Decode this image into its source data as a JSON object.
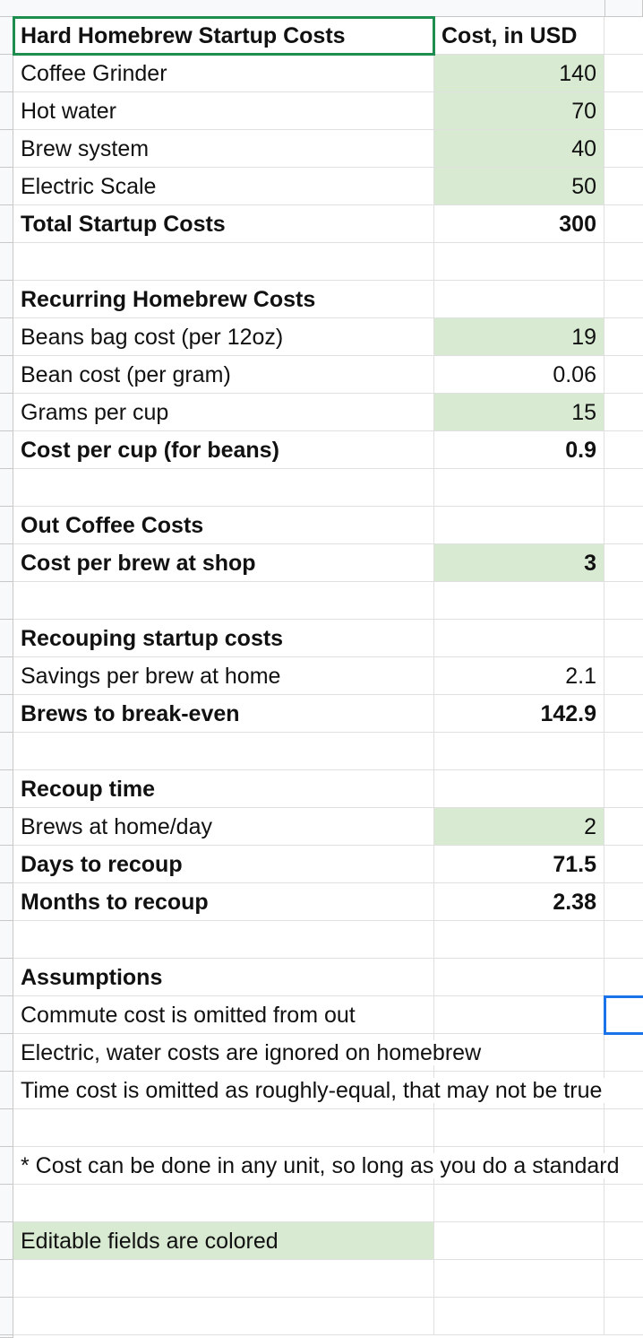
{
  "sheet": {
    "fill_color": "#d9ead3",
    "rows": [
      {
        "cells": [
          "Hard Homebrew Startup Costs",
          "Cost, in USD"
        ],
        "bold": true,
        "selected": 0,
        "value_align": "left"
      },
      {
        "cells": [
          "Coffee Grinder",
          140
        ],
        "green": 1
      },
      {
        "cells": [
          "Hot water",
          70
        ],
        "green": 1
      },
      {
        "cells": [
          "Brew system",
          40
        ],
        "green": 1
      },
      {
        "cells": [
          "Electric Scale",
          50
        ],
        "green": 1
      },
      {
        "cells": [
          "Total Startup Costs",
          300
        ],
        "bold": true
      },
      {
        "cells": []
      },
      {
        "cells": [
          "Recurring Homebrew Costs"
        ],
        "bold": true
      },
      {
        "cells": [
          "Beans bag cost (per 12oz)",
          19
        ],
        "green": 1
      },
      {
        "cells": [
          "Bean cost (per gram)",
          0.06
        ]
      },
      {
        "cells": [
          "Grams per cup",
          15
        ],
        "green": 1
      },
      {
        "cells": [
          "Cost per cup (for beans)",
          0.9
        ],
        "bold": true
      },
      {
        "cells": []
      },
      {
        "cells": [
          "Out Coffee Costs"
        ],
        "bold": true
      },
      {
        "cells": [
          "Cost per brew at shop",
          3
        ],
        "bold": true,
        "green": 1
      },
      {
        "cells": []
      },
      {
        "cells": [
          "Recouping startup costs"
        ],
        "bold": true
      },
      {
        "cells": [
          "Savings per brew at home",
          2.1
        ]
      },
      {
        "cells": [
          "Brews to break-even",
          142.9
        ],
        "bold": true
      },
      {
        "cells": []
      },
      {
        "cells": [
          "Recoup time"
        ],
        "bold": true
      },
      {
        "cells": [
          "Brews at home/day",
          2
        ],
        "green": 1
      },
      {
        "cells": [
          "Days to recoup",
          71.5
        ],
        "bold": true
      },
      {
        "cells": [
          "Months to recoup",
          2.38
        ],
        "bold": true
      },
      {
        "cells": []
      },
      {
        "cells": [
          "Assumptions"
        ],
        "bold": true
      },
      {
        "cells": [
          "Commute cost is omitted from out"
        ],
        "selected": 2
      },
      {
        "cells": [
          "Electric, water costs are ignored on homebrew"
        ]
      },
      {
        "cells": [
          "Time cost is omitted as roughly-equal, that may not be true"
        ]
      },
      {
        "cells": []
      },
      {
        "cells": [
          "* Cost can be done in any unit, so long as you do a standard"
        ]
      },
      {
        "cells": []
      },
      {
        "cells": [
          "Editable fields are colored"
        ],
        "green": 0
      },
      {
        "cells": []
      },
      {
        "cells": []
      }
    ]
  }
}
